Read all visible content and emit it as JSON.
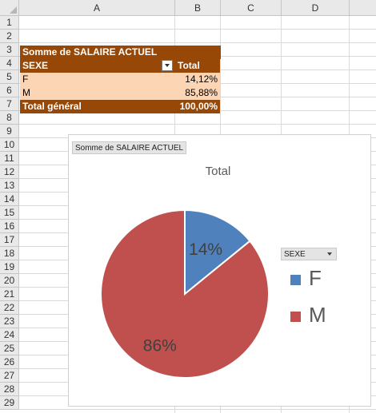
{
  "columns": [
    "A",
    "B",
    "C",
    "D"
  ],
  "rows": [
    "1",
    "2",
    "3",
    "4",
    "5",
    "6",
    "7",
    "8",
    "9",
    "10",
    "11",
    "12",
    "13",
    "14",
    "15",
    "16",
    "17",
    "18",
    "19",
    "20",
    "21",
    "22",
    "23",
    "24",
    "25",
    "26",
    "27",
    "28",
    "29"
  ],
  "pivot": {
    "title": "Somme de SALAIRE ACTUEL",
    "header_field": "SEXE",
    "header_value": "Total",
    "rows": [
      {
        "label": "F",
        "value": "14,12%"
      },
      {
        "label": "M",
        "value": "85,88%"
      }
    ],
    "total_label": "Total général",
    "total_value": "100,00%"
  },
  "chart": {
    "field_button": "Somme  de SALAIRE ACTUEL",
    "legend_field": "SEXE",
    "colors": {
      "F": "#4f81bd",
      "M": "#c0504d"
    }
  },
  "chart_data": {
    "type": "pie",
    "title": "Total",
    "categories": [
      "F",
      "M"
    ],
    "values": [
      14.12,
      85.88
    ],
    "data_labels": [
      "14%",
      "86%"
    ],
    "legend": "right"
  }
}
